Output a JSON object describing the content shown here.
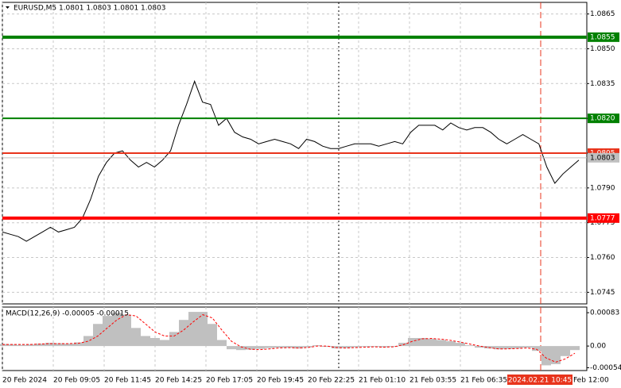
{
  "chart_data": [
    {
      "type": "line",
      "title": "EURUSD,M5  1.0801 1.0803 1.0801 1.0803",
      "time_labels": [
        "20 Feb 2024",
        "20 Feb 09:05",
        "20 Feb 11:45",
        "20 Feb 14:25",
        "20 Feb 17:05",
        "20 Feb 19:45",
        "20 Feb 22:25",
        "21 Feb 01:10",
        "21 Feb 03:55",
        "21 Feb 06:35",
        "2024.02.21 10:45",
        "Feb 12:00"
      ],
      "series": [
        {
          "name": "EURUSD",
          "color": "#000000",
          "values": [
            1.0771,
            1.077,
            1.0769,
            1.0767,
            1.0769,
            1.0771,
            1.0773,
            1.0771,
            1.0772,
            1.0773,
            1.0777,
            1.0785,
            1.0795,
            1.0801,
            1.0805,
            1.0806,
            1.0802,
            1.0799,
            1.0801,
            1.0799,
            1.0802,
            1.0806,
            1.0817,
            1.0826,
            1.0836,
            1.0827,
            1.0826,
            1.0817,
            1.082,
            1.0814,
            1.0812,
            1.0811,
            1.0809,
            1.081,
            1.0811,
            1.081,
            1.0809,
            1.0807,
            1.0811,
            1.081,
            1.0808,
            1.0807,
            1.0807,
            1.0808,
            1.0809,
            1.0809,
            1.0809,
            1.0808,
            1.0809,
            1.081,
            1.0809,
            1.0814,
            1.0817,
            1.0817,
            1.0817,
            1.0815,
            1.0818,
            1.0816,
            1.0815,
            1.0816,
            1.0816,
            1.0814,
            1.0811,
            1.0809,
            1.0811,
            1.0813,
            1.0811,
            1.0809,
            1.0799,
            1.0792,
            1.0796,
            1.0799,
            1.0802
          ]
        }
      ],
      "ylim": [
        1.074,
        1.087
      ],
      "yticks": [
        1.0865,
        {
          "value": 1.085,
          "label": "1.0850"
        },
        1.0835,
        {
          "value": 1.082,
          "label": "1.0820"
        },
        1.0805,
        {
          "value": 1.079,
          "label": "1.0790"
        },
        1.0775,
        {
          "value": 1.076,
          "label": "1.0760"
        },
        1.0745
      ],
      "levels": [
        {
          "price": 1.0855,
          "label": "1.0855",
          "color": "#008000",
          "width": 4
        },
        {
          "price": 1.082,
          "label": "1.0820",
          "color": "#008000",
          "width": 2
        },
        {
          "price": 1.0805,
          "label": "1.0805",
          "color": "#e8341c",
          "width": 2
        },
        {
          "price": 1.0777,
          "label": "1.0777",
          "color": "#ff0000",
          "width": 4
        },
        {
          "price": 1.0803,
          "label": "1.0803",
          "color": "#c0c0c0",
          "width": 1
        }
      ],
      "grid": true
    },
    {
      "type": "macd",
      "title": "MACD(12,26,9) -0.00005 -0.00015",
      "series": [
        {
          "name": "histogram",
          "color": "#c0c0c0",
          "values": [
            5e-05,
            4e-05,
            3e-05,
            4e-05,
            6e-05,
            8e-05,
            7e-05,
            6e-05,
            9e-05,
            0.00025,
            0.00055,
            0.00075,
            0.00083,
            0.00078,
            0.00045,
            0.00025,
            0.0002,
            0.00015,
            0.00035,
            0.00065,
            0.00085,
            0.00085,
            0.00055,
            0.00015,
            -8e-05,
            -0.0001,
            -9e-05,
            -7e-05,
            -5e-05,
            -4e-05,
            -4e-05,
            -6e-05,
            -3e-05,
            2e-05,
            -2e-05,
            -6e-05,
            -5e-05,
            -3e-05,
            -2e-05,
            -2e-05,
            -3e-05,
            -2e-05,
            8e-05,
            0.0002,
            0.0002,
            0.00018,
            0.00015,
            0.00012,
            8e-05,
            2e-05,
            -4e-05,
            -6e-05,
            -8e-05,
            -7e-05,
            -6e-05,
            -4e-05,
            -0.00012,
            -0.00048,
            -0.00045,
            -0.00025,
            -0.0001
          ]
        },
        {
          "name": "signal",
          "color": "#ff0000",
          "values": [
            4e-05,
            4e-05,
            4e-05,
            4e-05,
            5e-05,
            6e-05,
            6e-05,
            6e-05,
            7e-05,
            0.00012,
            0.00025,
            0.00045,
            0.00065,
            0.00078,
            0.00075,
            0.00055,
            0.00035,
            0.00025,
            0.00025,
            0.0004,
            0.0006,
            0.00078,
            0.0007,
            0.0004,
            0.00012,
            -2e-05,
            -8e-05,
            -9e-05,
            -7e-05,
            -5e-05,
            -4e-05,
            -5e-05,
            -4e-05,
            0,
            0,
            -4e-05,
            -5e-05,
            -4e-05,
            -3e-05,
            -2e-05,
            -3e-05,
            -2e-05,
            3e-05,
            0.00012,
            0.00018,
            0.00019,
            0.00017,
            0.00014,
            0.0001,
            5e-05,
            0,
            -4e-05,
            -7e-05,
            -7e-05,
            -6e-05,
            -5e-05,
            -8e-05,
            -0.0003,
            -0.0004,
            -0.00032,
            -0.00018
          ]
        }
      ],
      "ylim": [
        -0.00061,
        0.00097
      ],
      "yticks": [
        0.00083,
        {
          "value": 0,
          "label": "0.00"
        },
        -0.00054
      ]
    }
  ]
}
